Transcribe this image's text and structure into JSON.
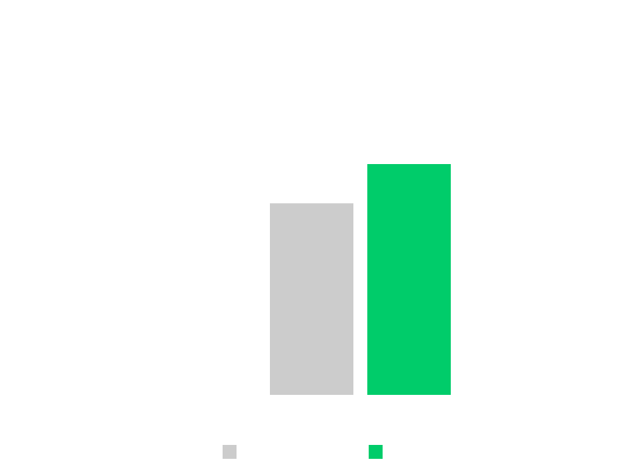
{
  "chart_data": {
    "type": "bar",
    "categories": [
      "",
      ""
    ],
    "series": [
      {
        "values": [
          0.83,
          1.0
        ],
        "colors": [
          "#cccccc",
          "#00cc6a"
        ]
      }
    ],
    "ylim": [
      0,
      1.0
    ],
    "grid": false,
    "axes_visible": false,
    "data_labels_visible": false,
    "legend": {
      "placement": "bottom",
      "entries": [
        {
          "label": "",
          "color": "#cccccc"
        },
        {
          "label": "",
          "color": "#00cc6a"
        }
      ]
    }
  }
}
